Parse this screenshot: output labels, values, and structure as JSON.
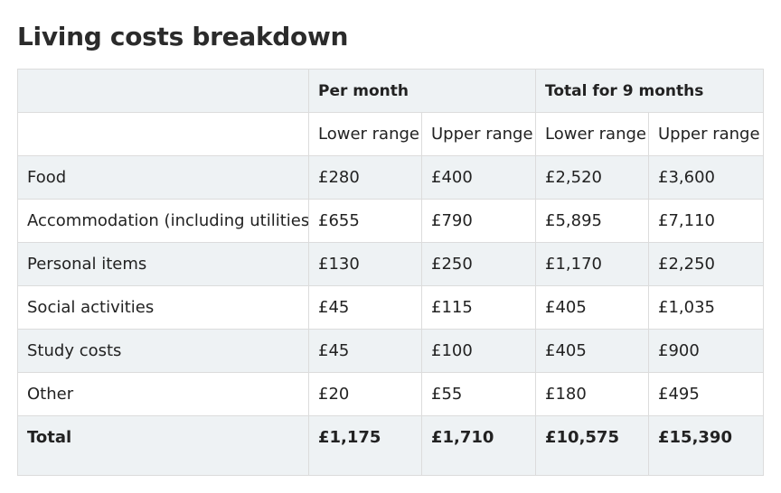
{
  "page": {
    "title": "Living costs breakdown"
  },
  "table": {
    "group_headers": [
      "",
      "Per month",
      "Total for 9 months"
    ],
    "sub_headers": [
      "",
      "Lower range",
      "Upper range",
      "Lower range",
      "Upper range"
    ],
    "rows": [
      {
        "label": "Food",
        "values": [
          "£280",
          "£400",
          "£2,520",
          "£3,600"
        ]
      },
      {
        "label": "Accommodation (including utilities)",
        "values": [
          "£655",
          "£790",
          "£5,895",
          "£7,110"
        ]
      },
      {
        "label": "Personal items",
        "values": [
          "£130",
          "£250",
          "£1,170",
          "£2,250"
        ]
      },
      {
        "label": "Social activities",
        "values": [
          "£45",
          "£115",
          "£405",
          "£1,035"
        ]
      },
      {
        "label": "Study costs",
        "values": [
          "£45",
          "£100",
          "£405",
          "£900"
        ]
      },
      {
        "label": "Other",
        "values": [
          "£20",
          "£55",
          "£180",
          "£495"
        ]
      }
    ],
    "total": {
      "label": "Total",
      "values": [
        "£1,175",
        "£1,710",
        "£10,575",
        "£15,390"
      ]
    }
  },
  "colors": {
    "shaded_row": "#eef2f4",
    "border": "#dcdcdc",
    "text": "#222222"
  }
}
